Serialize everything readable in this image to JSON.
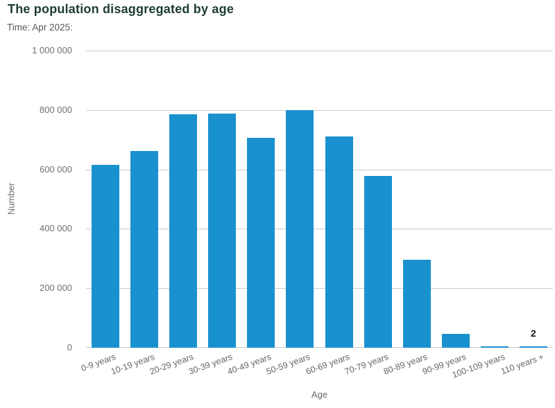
{
  "header": {
    "title": "The population disaggregated by age",
    "subtitle": "Time: Apr 2025:"
  },
  "chart_data": {
    "type": "bar",
    "title": "The population disaggregated by age",
    "subtitle": "Time: Apr 2025:",
    "xlabel": "Age",
    "ylabel": "Number",
    "ylim": [
      0,
      1000000
    ],
    "grid": true,
    "legend": "none",
    "bar_color": "#1a91cf",
    "y_ticks": [
      0,
      200000,
      400000,
      600000,
      800000,
      1000000
    ],
    "y_tick_labels": [
      "0",
      "200 000",
      "400 000",
      "600 000",
      "800 000",
      "1 000 000"
    ],
    "categories": [
      "0-9 years",
      "10-19 years",
      "20-29 years",
      "30-39 years",
      "40-49 years",
      "50-59 years",
      "60-69 years",
      "70-79 years",
      "80-89 years",
      "90-99 years",
      "100-109 years",
      "110 years +"
    ],
    "values": [
      615000,
      662000,
      785000,
      787000,
      706000,
      800000,
      712000,
      578000,
      296000,
      46000,
      1200,
      2
    ],
    "data_labels": [
      "",
      "",
      "",
      "",
      "",
      "",
      "",
      "",
      "",
      "",
      "",
      "2"
    ]
  },
  "colors": {
    "title": "#1c3c34",
    "subtitle": "#595959",
    "axis_text": "#6e6e6e",
    "gridline": "#cbcbcb",
    "bar": "#1a91cf",
    "data_label": "#1a1a1a"
  }
}
